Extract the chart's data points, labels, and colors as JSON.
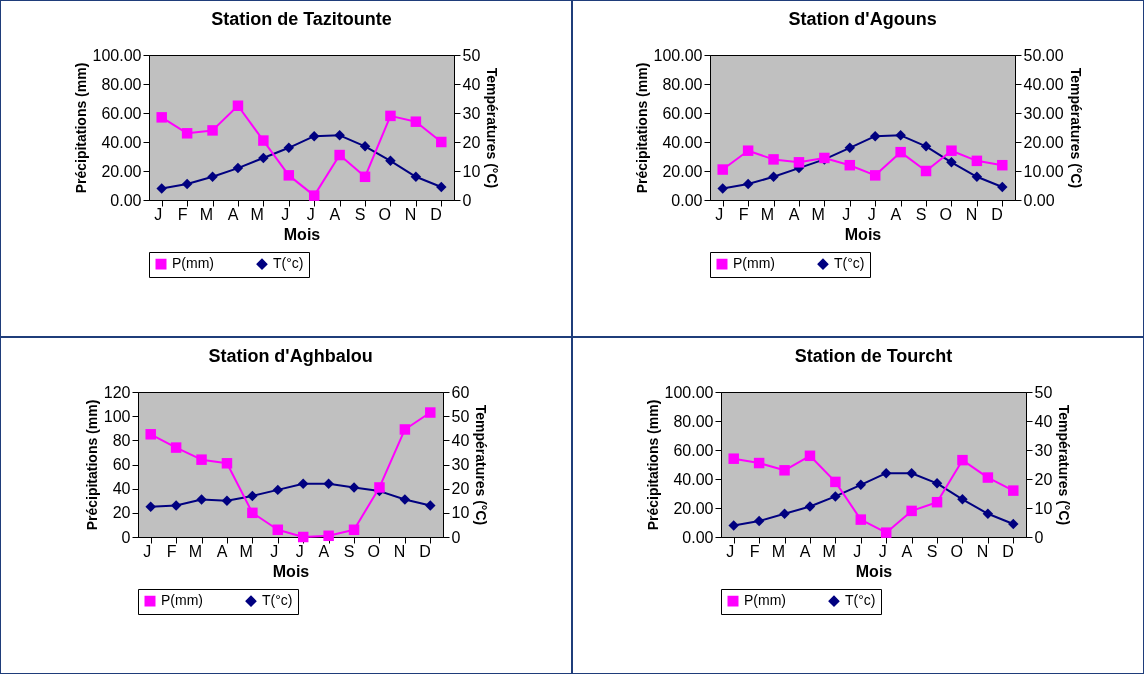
{
  "chart_data": [
    {
      "type": "line",
      "title": "Station de Tazitounte",
      "xlabel": "Mois",
      "ylabel": "Précipitations (mm)",
      "y2label": "Températures (°C)",
      "categories": [
        "J",
        "F",
        "M",
        "A",
        "M",
        "J",
        "J",
        "A",
        "S",
        "O",
        "N",
        "D"
      ],
      "ylim": [
        0,
        100
      ],
      "yticks": [
        {
          "value": 0,
          "label": "0.00"
        },
        {
          "value": 20,
          "label": "20.00"
        },
        {
          "value": 40,
          "label": "40.00"
        },
        {
          "value": 60,
          "label": "60.00"
        },
        {
          "value": 80,
          "label": "80.00"
        },
        {
          "value": 100,
          "label": "100.00"
        }
      ],
      "y2lim": [
        0,
        50
      ],
      "y2ticks": [
        0,
        10,
        20,
        30,
        40,
        50
      ],
      "legend": "bottom",
      "grid": false,
      "series": [
        {
          "name": "P(mm)",
          "color": "#ff00ff",
          "marker": "square",
          "values": [
            57,
            46,
            48,
            65,
            41,
            17,
            3,
            31,
            16,
            58,
            54,
            40
          ]
        },
        {
          "name": "T(°c)",
          "color": "#000080",
          "marker": "diamond",
          "axis": "y2",
          "values": [
            4,
            5.5,
            8,
            11,
            14.5,
            18,
            22,
            22.3,
            18.5,
            13.5,
            8,
            4.5
          ]
        }
      ]
    },
    {
      "type": "line",
      "title": "Station d'Agouns",
      "xlabel": "Mois",
      "ylabel": "Précipitations (mm)",
      "y2label": "Températures (°C)",
      "categories": [
        "J",
        "F",
        "M",
        "A",
        "M",
        "J",
        "J",
        "A",
        "S",
        "O",
        "N",
        "D"
      ],
      "ylim": [
        0,
        100
      ],
      "yticks": [
        {
          "value": 0,
          "label": "0.00"
        },
        {
          "value": 20,
          "label": "20.00"
        },
        {
          "value": 40,
          "label": "40.00"
        },
        {
          "value": 60,
          "label": "60.00"
        },
        {
          "value": 80,
          "label": "80.00"
        },
        {
          "value": 100,
          "label": "100.00"
        }
      ],
      "y2lim": [
        0,
        50
      ],
      "y2ticks": [
        {
          "value": 0,
          "label": "0.00"
        },
        {
          "value": 10,
          "label": "10.00"
        },
        {
          "value": 20,
          "label": "20.00"
        },
        {
          "value": 30,
          "label": "30.00"
        },
        {
          "value": 40,
          "label": "40.00"
        },
        {
          "value": 50,
          "label": "50.00"
        }
      ],
      "legend": "bottom",
      "grid": false,
      "series": [
        {
          "name": "P(mm)",
          "color": "#ff00ff",
          "marker": "square",
          "values": [
            21,
            34,
            28,
            26,
            29,
            24,
            17,
            33,
            20,
            34,
            27,
            24
          ]
        },
        {
          "name": "T(°c)",
          "color": "#000080",
          "marker": "diamond",
          "axis": "y2",
          "values": [
            4,
            5.5,
            8,
            11,
            14,
            18,
            22,
            22.3,
            18.5,
            13,
            8,
            4.5
          ]
        }
      ]
    },
    {
      "type": "line",
      "title": "Station d'Aghbalou",
      "xlabel": "Mois",
      "ylabel": "Précipitations (mm)",
      "y2label": "Températures (°C)",
      "categories": [
        "J",
        "F",
        "M",
        "A",
        "M",
        "J",
        "J",
        "A",
        "S",
        "O",
        "N",
        "D"
      ],
      "ylim": [
        0,
        120
      ],
      "yticks": [
        0,
        20,
        40,
        60,
        80,
        100,
        120
      ],
      "y2lim": [
        0,
        60
      ],
      "y2ticks": [
        0,
        10,
        20,
        30,
        40,
        50,
        60
      ],
      "legend": "bottom",
      "grid": false,
      "series": [
        {
          "name": "P(mm)",
          "color": "#ff00ff",
          "marker": "square",
          "values": [
            85,
            74,
            64,
            61,
            20,
            6,
            0,
            1,
            6,
            41,
            89,
            103
          ]
        },
        {
          "name": "T(°c)",
          "color": "#000080",
          "marker": "diamond",
          "axis": "y2",
          "values": [
            12.5,
            13,
            15.5,
            15,
            17,
            19.5,
            22,
            22,
            20.5,
            19,
            15.5,
            13
          ]
        }
      ]
    },
    {
      "type": "line",
      "title": "Station de Tourcht",
      "xlabel": "Mois",
      "ylabel": "Précipitations (mm)",
      "y2label": "Températures (°C)",
      "categories": [
        "J",
        "F",
        "M",
        "A",
        "M",
        "J",
        "J",
        "A",
        "S",
        "O",
        "N",
        "D"
      ],
      "ylim": [
        0,
        100
      ],
      "yticks": [
        {
          "value": 0,
          "label": "0.00"
        },
        {
          "value": 20,
          "label": "20.00"
        },
        {
          "value": 40,
          "label": "40.00"
        },
        {
          "value": 60,
          "label": "60.00"
        },
        {
          "value": 80,
          "label": "80.00"
        },
        {
          "value": 100,
          "label": "100.00"
        }
      ],
      "y2lim": [
        0,
        50
      ],
      "y2ticks": [
        0,
        10,
        20,
        30,
        40,
        50
      ],
      "legend": "bottom",
      "grid": false,
      "series": [
        {
          "name": "P(mm)",
          "color": "#ff00ff",
          "marker": "square",
          "values": [
            54,
            51,
            46,
            56,
            38,
            12,
            3,
            18,
            24,
            53,
            41,
            32
          ]
        },
        {
          "name": "T(°c)",
          "color": "#000080",
          "marker": "diamond",
          "axis": "y2",
          "values": [
            4,
            5.5,
            8,
            10.5,
            14,
            18,
            22,
            22,
            18.5,
            13,
            8,
            4.5
          ]
        }
      ]
    }
  ]
}
